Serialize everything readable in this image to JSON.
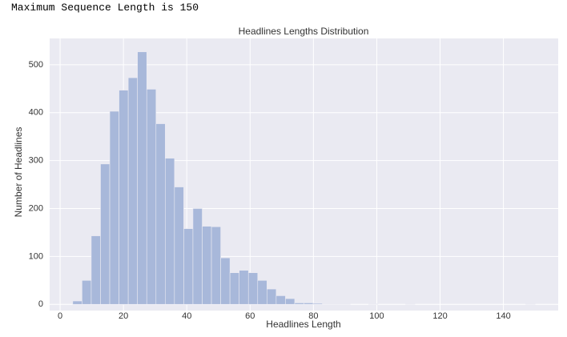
{
  "output_text": "Maximum Sequence Length is 150",
  "chart_data": {
    "type": "histogram",
    "title": "Headlines Lengths Distribution",
    "x_label": "Headlines Length",
    "y_label": "Number of Headlines",
    "bins": [
      4,
      6.92,
      9.84,
      12.76,
      15.68,
      18.6,
      21.52,
      24.44,
      27.36,
      30.28,
      33.2,
      36.12,
      39.04,
      41.96,
      44.88,
      47.8,
      50.72,
      53.64,
      56.56,
      59.48,
      62.4,
      65.32,
      68.24,
      71.16,
      74.08,
      77,
      79.92,
      82.84,
      85.76,
      88.68,
      91.6,
      94.52,
      97.44,
      100.36,
      103.28,
      106.2,
      109.12,
      112.04,
      114.96,
      117.88,
      120.8,
      123.72,
      126.64,
      129.56,
      132.48,
      135.4,
      138.32,
      141.24,
      144.16,
      147.08,
      150
    ],
    "values": [
      7,
      50,
      143,
      293,
      403,
      447,
      473,
      527,
      449,
      377,
      305,
      245,
      158,
      200,
      163,
      162,
      97,
      66,
      71,
      66,
      50,
      32,
      18,
      12,
      3,
      3,
      2,
      1,
      1,
      1,
      0,
      0,
      1,
      0,
      0,
      0,
      1,
      0,
      0,
      0,
      0,
      0,
      0,
      0,
      0,
      0,
      0,
      0,
      0,
      1
    ],
    "color": "#a8b8da",
    "xlim": [
      -3.3,
      157.3
    ],
    "ylim": [
      -13,
      555
    ],
    "xticks": [
      0,
      20,
      40,
      60,
      80,
      100,
      120,
      140
    ],
    "yticks": [
      0,
      100,
      200,
      300,
      400,
      500
    ],
    "grid": true
  }
}
